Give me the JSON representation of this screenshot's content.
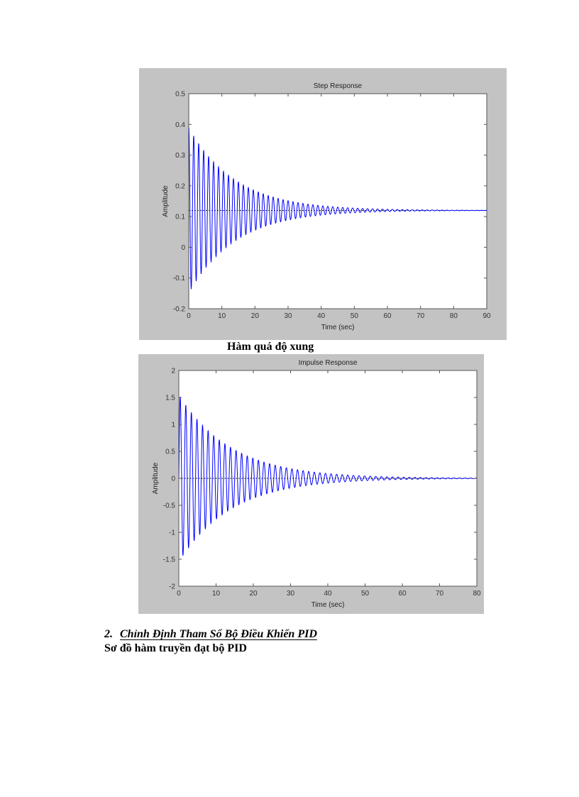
{
  "document": {
    "caption_impulse": "Hàm quá độ xung",
    "section_number": "2.",
    "section_title": "Chỉnh Định Tham Số Bộ Điều Khiển PID",
    "body_text": "Sơ đồ hàm truyền đạt bộ PID"
  },
  "colors": {
    "trace": "#0000ff",
    "figure_bg": "#c8c8c8",
    "axes_bg": "#ffffff",
    "steady_line": "#333333"
  },
  "chart_data": [
    {
      "type": "line",
      "title": "Step Response",
      "xlabel": "Time (sec)",
      "ylabel": "Amplitude",
      "xlim": [
        0,
        90
      ],
      "ylim": [
        -0.2,
        0.5
      ],
      "xticks": [
        0,
        10,
        20,
        30,
        40,
        50,
        60,
        70,
        80,
        90
      ],
      "yticks": [
        -0.2,
        -0.1,
        0,
        0.1,
        0.2,
        0.3,
        0.4,
        0.5
      ],
      "ytick_labels": [
        "-0.2",
        "-0.1",
        "0",
        "0.1",
        "0.2",
        "0.3",
        "0.4",
        "0.5"
      ],
      "grid": false,
      "legend": "none",
      "steady_state": 0.12,
      "steady_line_style": "dotted",
      "series": [
        {
          "name": "step",
          "model": "damped oscillation around steady state",
          "initial_peak": 0.395,
          "initial_trough": -0.15,
          "envelope_amplitude": 0.27,
          "decay_time_constant_sec": 14,
          "oscillation_period_sec": 1.5,
          "settled_by_sec": 70,
          "samples": {
            "x": [
              0,
              1,
              5,
              10,
              20,
              30,
              40,
              50,
              60,
              70,
              80,
              90
            ],
            "upper_envelope": [
              0.395,
              0.37,
              0.33,
              0.29,
              0.23,
              0.18,
              0.15,
              0.135,
              0.127,
              0.123,
              0.121,
              0.12
            ],
            "lower_envelope": [
              -0.15,
              -0.13,
              -0.09,
              -0.05,
              0.01,
              0.06,
              0.09,
              0.105,
              0.113,
              0.117,
              0.119,
              0.12
            ]
          }
        }
      ]
    },
    {
      "type": "line",
      "title": "Impulse Response",
      "xlabel": "Time (sec)",
      "ylabel": "Amplitude",
      "xlim": [
        0,
        80
      ],
      "ylim": [
        -2,
        2
      ],
      "xticks": [
        0,
        10,
        20,
        30,
        40,
        50,
        60,
        70,
        80
      ],
      "yticks": [
        -2,
        -1.5,
        -1,
        -0.5,
        0,
        0.5,
        1,
        1.5,
        2
      ],
      "ytick_labels": [
        "-2",
        "-1.5",
        "-1",
        "-0.5",
        "0",
        "0.5",
        "1",
        "1.5",
        "2"
      ],
      "grid": false,
      "legend": "none",
      "steady_state": 0,
      "steady_line_style": "dotted",
      "series": [
        {
          "name": "impulse",
          "model": "damped oscillation around zero",
          "initial_peak": 1.55,
          "initial_trough": -1.6,
          "envelope_amplitude": 1.55,
          "decay_time_constant_sec": 14,
          "oscillation_period_sec": 1.5,
          "settled_by_sec": 75,
          "samples": {
            "x": [
              0,
              1,
              5,
              10,
              20,
              30,
              40,
              50,
              60,
              70,
              80
            ],
            "upper_envelope": [
              1.5,
              1.55,
              1.35,
              1.0,
              0.6,
              0.35,
              0.2,
              0.1,
              0.05,
              0.02,
              0.01
            ],
            "lower_envelope": [
              -1.5,
              -1.6,
              -1.35,
              -1.0,
              -0.6,
              -0.35,
              -0.2,
              -0.1,
              -0.05,
              -0.02,
              -0.01
            ]
          }
        }
      ]
    }
  ]
}
